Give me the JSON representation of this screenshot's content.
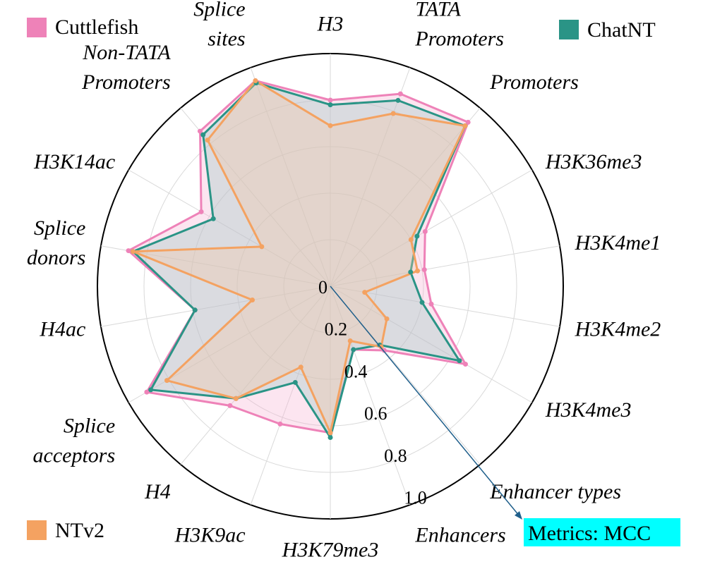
{
  "chart_data": {
    "type": "radar",
    "title": "",
    "axes": [
      "H3",
      "TATA Promoters",
      "Promoters",
      "H3K36me3",
      "H3K4me1",
      "H3K4me2",
      "H3K4me3",
      "Enhancer types",
      "Enhancers",
      "H3K79me3",
      "H3K9ac",
      "H4",
      "Splice acceptors",
      "H4ac",
      "Splice donors",
      "H3K14ac",
      "Non-TATA Promoters",
      "Splice sites"
    ],
    "axis_label_lines": [
      [
        "H3"
      ],
      [
        "TATA",
        "Promoters"
      ],
      [
        "Promoters"
      ],
      [
        "H3K36me3"
      ],
      [
        "H3K4me1"
      ],
      [
        "H3K4me2"
      ],
      [
        "H3K4me3"
      ],
      [
        "Enhancer types"
      ],
      [
        "Enhancers"
      ],
      [
        "H3K79me3"
      ],
      [
        "H3K9ac"
      ],
      [
        "H4"
      ],
      [
        "Splice",
        "acceptors"
      ],
      [
        "H4ac"
      ],
      [
        "Splice",
        "donors"
      ],
      [
        "H3K14ac"
      ],
      [
        "Non-TATA",
        "Promoters"
      ],
      [
        "Splice",
        "sites"
      ]
    ],
    "radial_range": [
      0,
      1.0
    ],
    "radial_ticks": [
      "0",
      "0.2",
      "0.4",
      "0.6",
      "0.8",
      "1.0"
    ],
    "radial_tick_values": [
      0,
      0.2,
      0.4,
      0.6,
      0.8,
      1.0
    ],
    "grid": true,
    "series": [
      {
        "name": "Cuttlefish",
        "color": "#ee82b8",
        "fill": "#f7b4d3",
        "values": [
          0.8,
          0.88,
          0.92,
          0.47,
          0.41,
          0.44,
          0.67,
          0.36,
          0.29,
          0.63,
          0.63,
          0.67,
          0.91,
          0.59,
          0.88,
          0.64,
          0.87,
          0.94
        ]
      },
      {
        "name": "ChatNT",
        "color": "#2a9486",
        "fill": "#9cc9c2",
        "values": [
          0.78,
          0.85,
          0.9,
          0.43,
          0.35,
          0.4,
          0.64,
          0.33,
          0.29,
          0.65,
          0.44,
          0.63,
          0.89,
          0.59,
          0.86,
          0.58,
          0.85,
          0.93
        ]
      },
      {
        "name": "NTv2",
        "color": "#f4a261",
        "fill": "#f3c9a7",
        "values": [
          0.69,
          0.79,
          0.9,
          0.4,
          0.38,
          0.15,
          0.28,
          0.34,
          0.25,
          0.63,
          0.37,
          0.63,
          0.81,
          0.34,
          0.86,
          0.34,
          0.82,
          0.94
        ]
      }
    ],
    "legend": [
      "Cuttlefish",
      "ChatNT",
      "NTv2"
    ],
    "annotation": "Metrics: MCC"
  },
  "colors": {
    "grid": "#d9d9d9",
    "outer_ring": "#000000",
    "annotation_bg": "#00ffff",
    "arrow": "#1f5f8b"
  }
}
